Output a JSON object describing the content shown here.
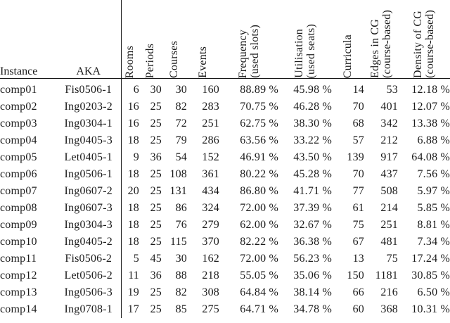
{
  "page": {
    "background_color": "#ffffff",
    "text_color": "#1b1b1b",
    "rule_color": "#151515"
  },
  "table": {
    "left_headers": [
      "Instance",
      "AKA"
    ],
    "rot_headers": [
      [
        "Rooms",
        ""
      ],
      [
        "Periods",
        ""
      ],
      [
        "Courses",
        ""
      ],
      [
        "Events",
        ""
      ],
      [
        "Frequency",
        "(used slots)"
      ],
      [
        "Utilisation",
        "(used seats)"
      ],
      [
        "Curricula",
        ""
      ],
      [
        "Edges in CG",
        "(course-based)"
      ],
      [
        "Density of CG",
        "(course-based)"
      ]
    ],
    "rows": [
      [
        "comp01",
        "Fis0506-1",
        "6",
        "30",
        "30",
        "160",
        "88.89 %",
        "45.98 %",
        "14",
        "53",
        "12.18 %"
      ],
      [
        "comp02",
        "Ing0203-2",
        "16",
        "25",
        "82",
        "283",
        "70.75 %",
        "46.28 %",
        "70",
        "401",
        "12.07 %"
      ],
      [
        "comp03",
        "Ing0304-1",
        "16",
        "25",
        "72",
        "251",
        "62.75 %",
        "38.30 %",
        "68",
        "342",
        "13.38 %"
      ],
      [
        "comp04",
        "Ing0405-3",
        "18",
        "25",
        "79",
        "286",
        "63.56 %",
        "33.22 %",
        "57",
        "212",
        "6.88 %"
      ],
      [
        "comp05",
        "Let0405-1",
        "9",
        "36",
        "54",
        "152",
        "46.91 %",
        "43.50 %",
        "139",
        "917",
        "64.08 %"
      ],
      [
        "comp06",
        "Ing0506-1",
        "18",
        "25",
        "108",
        "361",
        "80.22 %",
        "45.28 %",
        "70",
        "437",
        "7.56 %"
      ],
      [
        "comp07",
        "Ing0607-2",
        "20",
        "25",
        "131",
        "434",
        "86.80 %",
        "41.71 %",
        "77",
        "508",
        "5.97 %"
      ],
      [
        "comp08",
        "Ing0607-3",
        "18",
        "25",
        "86",
        "324",
        "72.00 %",
        "37.39 %",
        "61",
        "214",
        "5.85 %"
      ],
      [
        "comp09",
        "Ing0304-3",
        "18",
        "25",
        "76",
        "279",
        "62.00 %",
        "32.67 %",
        "75",
        "251",
        "8.81 %"
      ],
      [
        "comp10",
        "Ing0405-2",
        "18",
        "25",
        "115",
        "370",
        "82.22 %",
        "36.38 %",
        "67",
        "481",
        "7.34 %"
      ],
      [
        "comp11",
        "Fis0506-2",
        "5",
        "45",
        "30",
        "162",
        "72.00 %",
        "56.23 %",
        "13",
        "75",
        "17.24 %"
      ],
      [
        "comp12",
        "Let0506-2",
        "11",
        "36",
        "88",
        "218",
        "55.05 %",
        "35.06 %",
        "150",
        "1181",
        "30.85 %"
      ],
      [
        "comp13",
        "Ing0506-3",
        "19",
        "25",
        "82",
        "308",
        "64.84 %",
        "38.14 %",
        "66",
        "216",
        "6.50 %"
      ],
      [
        "comp14",
        "Ing0708-1",
        "17",
        "25",
        "85",
        "275",
        "64.71 %",
        "34.78 %",
        "60",
        "368",
        "10.31 %"
      ]
    ]
  }
}
